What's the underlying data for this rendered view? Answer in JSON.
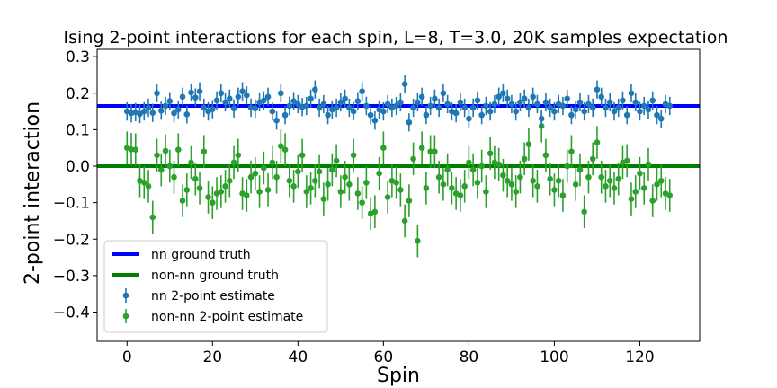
{
  "chart_data": {
    "type": "scatter",
    "title": "Ising 2-point interactions for each spin, L=8, T=3.0, 20K samples expectation",
    "xlabel": "Spin",
    "ylabel": "2-point interaction",
    "xlim": [
      -7,
      134
    ],
    "ylim": [
      -0.48,
      0.32
    ],
    "xticks": [
      0,
      20,
      40,
      60,
      80,
      100,
      120
    ],
    "yticks": [
      -0.4,
      -0.3,
      -0.2,
      -0.1,
      0.0,
      0.1,
      0.2,
      0.3
    ],
    "ytick_labels": [
      "−0.4",
      "−0.3",
      "−0.2",
      "−0.1",
      "0.0",
      "0.1",
      "0.2",
      "0.3"
    ],
    "xtick_labels": [
      "0",
      "20",
      "40",
      "60",
      "80",
      "100",
      "120"
    ],
    "legend_position": "lower-left",
    "hlines": [
      {
        "name": "nn ground truth",
        "y": 0.165,
        "color": "#0000ff"
      },
      {
        "name": "non-nn ground truth",
        "y": 0.0,
        "color": "#008000"
      }
    ],
    "series": [
      {
        "name": "nn 2-point estimate",
        "color": "#1f77b4",
        "error": 0.025,
        "values": [
          0.15,
          0.145,
          0.148,
          0.143,
          0.15,
          0.16,
          0.146,
          0.2,
          0.152,
          0.165,
          0.178,
          0.145,
          0.155,
          0.19,
          0.142,
          0.202,
          0.188,
          0.205,
          0.16,
          0.15,
          0.156,
          0.18,
          0.2,
          0.175,
          0.185,
          0.158,
          0.19,
          0.205,
          0.194,
          0.16,
          0.158,
          0.175,
          0.18,
          0.19,
          0.15,
          0.125,
          0.2,
          0.14,
          0.165,
          0.178,
          0.17,
          0.162,
          0.165,
          0.185,
          0.21,
          0.16,
          0.17,
          0.14,
          0.155,
          0.16,
          0.175,
          0.185,
          0.16,
          0.15,
          0.178,
          0.205,
          0.165,
          0.14,
          0.125,
          0.155,
          0.15,
          0.17,
          0.16,
          0.165,
          0.175,
          0.225,
          0.12,
          0.16,
          0.175,
          0.19,
          0.14,
          0.165,
          0.185,
          0.16,
          0.2,
          0.17,
          0.15,
          0.145,
          0.175,
          0.16,
          0.13,
          0.16,
          0.18,
          0.14,
          0.165,
          0.15,
          0.17,
          0.19,
          0.2,
          0.185,
          0.17,
          0.15,
          0.175,
          0.185,
          0.16,
          0.19,
          0.17,
          0.13,
          0.175,
          0.16,
          0.15,
          0.17,
          0.165,
          0.185,
          0.14,
          0.155,
          0.175,
          0.15,
          0.17,
          0.16,
          0.21,
          0.19,
          0.16,
          0.175,
          0.15,
          0.16,
          0.18,
          0.14,
          0.2,
          0.175,
          0.15,
          0.165,
          0.155,
          0.18,
          0.14,
          0.13,
          0.17,
          0.165
        ]
      },
      {
        "name": "non-nn 2-point estimate",
        "color": "#2ca02c",
        "error": 0.045,
        "values": [
          0.05,
          0.046,
          0.045,
          -0.04,
          -0.045,
          -0.055,
          -0.14,
          0.03,
          -0.01,
          0.042,
          0.0,
          -0.03,
          0.045,
          -0.095,
          -0.065,
          0.01,
          -0.035,
          -0.06,
          0.04,
          -0.085,
          -0.1,
          -0.075,
          -0.07,
          -0.055,
          -0.04,
          0.01,
          0.03,
          -0.075,
          -0.08,
          -0.03,
          -0.02,
          -0.07,
          -0.005,
          -0.065,
          0.01,
          -0.03,
          0.055,
          0.045,
          -0.04,
          -0.055,
          -0.015,
          0.03,
          -0.07,
          -0.06,
          -0.04,
          -0.015,
          -0.09,
          -0.05,
          -0.01,
          0.015,
          -0.07,
          -0.03,
          -0.05,
          0.03,
          -0.075,
          -0.1,
          -0.045,
          -0.13,
          -0.125,
          -0.02,
          0.05,
          -0.085,
          -0.04,
          -0.045,
          -0.065,
          -0.15,
          -0.095,
          0.02,
          -0.205,
          0.05,
          -0.06,
          0.04,
          0.04,
          -0.03,
          -0.05,
          -0.01,
          -0.06,
          -0.075,
          -0.08,
          -0.055,
          0.01,
          -0.01,
          -0.045,
          0.0,
          -0.07,
          0.035,
          0.01,
          0.005,
          -0.025,
          -0.04,
          -0.05,
          -0.07,
          -0.03,
          0.02,
          0.06,
          -0.04,
          -0.055,
          0.11,
          0.03,
          -0.035,
          -0.065,
          -0.04,
          -0.08,
          0.0,
          0.04,
          -0.05,
          -0.01,
          -0.125,
          -0.03,
          0.02,
          0.065,
          -0.03,
          -0.055,
          -0.04,
          -0.06,
          -0.035,
          0.01,
          0.015,
          -0.09,
          -0.07,
          -0.02,
          -0.06,
          0.005,
          -0.095,
          -0.05,
          -0.04,
          -0.075,
          -0.08
        ]
      }
    ]
  }
}
